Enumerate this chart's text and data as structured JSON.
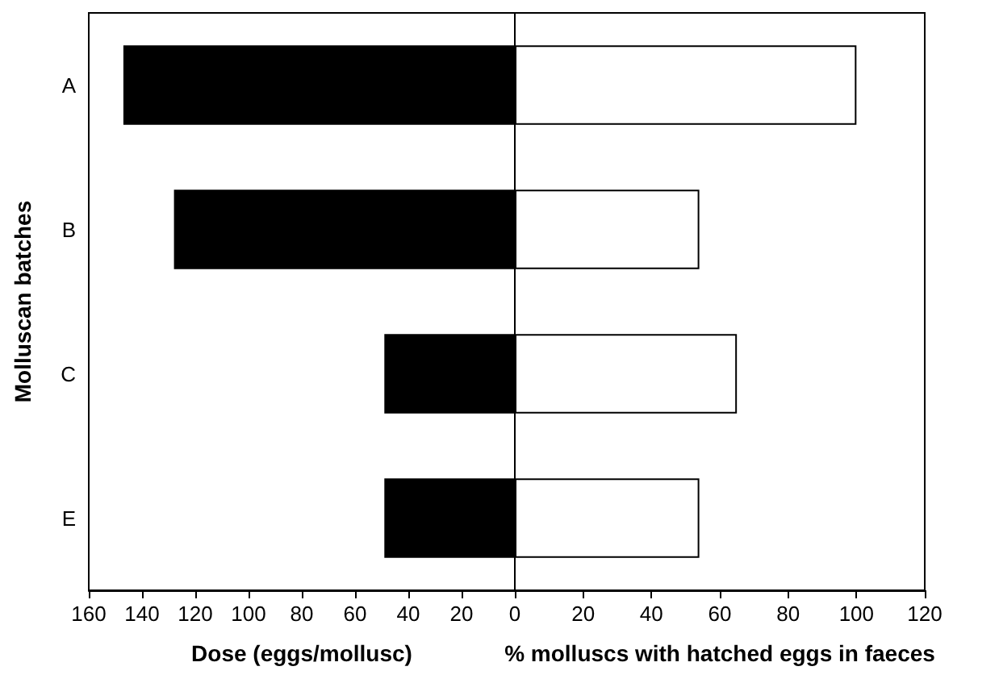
{
  "chart_data": [
    {
      "type": "bar",
      "orientation": "horizontal",
      "categories": [
        "A",
        "B",
        "C",
        "E"
      ],
      "xlabel": "Dose (eggs/mollusc)",
      "ylabel": "Molluscan batches",
      "series": [
        {
          "color": "#000000",
          "values": [
            147,
            128,
            49,
            49
          ]
        }
      ],
      "xlim": [
        160,
        0
      ],
      "xticks": [
        160,
        140,
        120,
        100,
        80,
        60,
        40,
        20,
        {
          "value": 0,
          "label": null
        }
      ],
      "grid": false
    },
    {
      "type": "bar",
      "orientation": "horizontal",
      "categories": [
        null,
        null,
        null,
        null
      ],
      "xlabel": "% molluscs with hatched eggs in faeces",
      "series": [
        {
          "color": "#ffffff",
          "values": [
            100,
            54,
            65,
            54
          ]
        }
      ],
      "xlim": [
        0,
        120
      ],
      "xticks": [
        0,
        20,
        40,
        60,
        80,
        100,
        120
      ],
      "tick_labels": "x",
      "grid": false
    }
  ]
}
